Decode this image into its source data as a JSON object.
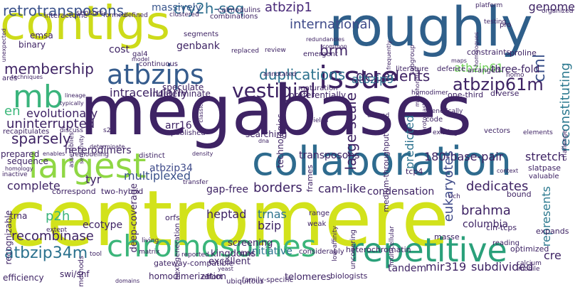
{
  "background": "#ffffff",
  "words": [
    {
      "text": "megabases",
      "color": "#3e2364"
    },
    {
      "text": "centromere",
      "color": "#d2e21b"
    },
    {
      "text": "contigs",
      "color": "#cddb1a"
    },
    {
      "text": "roughly",
      "color": "#2f5f8a"
    },
    {
      "text": "collaboration",
      "color": "#2e6b8e"
    },
    {
      "text": "chromosomes",
      "color": "#3bb57a"
    },
    {
      "text": "repetitive",
      "color": "#2aa07a"
    },
    {
      "text": "largest",
      "color": "#8fd744"
    },
    {
      "text": "atbzips",
      "color": "#365c8d"
    },
    {
      "text": "issue",
      "color": "#3e2364"
    },
    {
      "text": "mb",
      "color": "#3ab47c"
    },
    {
      "text": "retrotransposons",
      "color": "#3b528b"
    },
    {
      "text": "cry2h-seq",
      "color": "#2d6e8e"
    },
    {
      "text": "international",
      "color": "#3e4a89"
    },
    {
      "text": "atbzip1",
      "color": "#482878"
    },
    {
      "text": "genome",
      "color": "#3e2364"
    },
    {
      "text": "massively",
      "color": "#39568c"
    },
    {
      "text": "decedents",
      "color": "#3e2364"
    },
    {
      "text": "membership",
      "color": "#3e2364"
    },
    {
      "text": "duplications",
      "color": "#2c728e"
    },
    {
      "text": "vestigial",
      "color": "#3e2364"
    },
    {
      "text": "brm",
      "color": "#3e2364"
    },
    {
      "text": "cml",
      "color": "#3b528b"
    },
    {
      "text": "atbzip61m",
      "color": "#3e2364"
    },
    {
      "text": "atbzip9",
      "color": "#2c728e"
    },
    {
      "text": "atbzip61",
      "color": "#6ece58"
    },
    {
      "text": "intracellularly",
      "color": "#3e2364"
    },
    {
      "text": "three-fold",
      "color": "#3e2364"
    },
    {
      "text": "reconstituting",
      "color": "#2a788e"
    },
    {
      "text": "evolutionary",
      "color": "#3e2364"
    },
    {
      "text": "en",
      "color": "#3bb77a"
    },
    {
      "text": "uninterrupted",
      "color": "#3e2364"
    },
    {
      "text": "sparsely",
      "color": "#3e2364"
    },
    {
      "text": "large-scale",
      "color": "#3e2364"
    },
    {
      "text": "predicted",
      "color": "#2c728e"
    },
    {
      "text": "heterodimers",
      "color": "#3e2364"
    },
    {
      "text": "arr16",
      "color": "#3e2364"
    },
    {
      "text": "transposons",
      "color": "#3e2364"
    },
    {
      "text": "180-base-pair",
      "color": "#3e2364"
    },
    {
      "text": "stretch",
      "color": "#3e2364"
    },
    {
      "text": "multiplexed",
      "color": "#3b528b"
    },
    {
      "text": "tyr",
      "color": "#3e2364"
    },
    {
      "text": "complete",
      "color": "#3e2364"
    },
    {
      "text": "gap-free",
      "color": "#3e2364"
    },
    {
      "text": "borders",
      "color": "#3e2364"
    },
    {
      "text": "cam-like",
      "color": "#3e2364"
    },
    {
      "text": "condensation",
      "color": "#3e2364"
    },
    {
      "text": "dedicates",
      "color": "#3e2364"
    },
    {
      "text": "atbzip34",
      "color": "#3e4a89"
    },
    {
      "text": "p2h",
      "color": "#3ab47c"
    },
    {
      "text": "heptad",
      "color": "#3e2364"
    },
    {
      "text": "trnas",
      "color": "#2c728e"
    },
    {
      "text": "bzip",
      "color": "#3e2364"
    },
    {
      "text": "eukaryotes",
      "color": "#3e4a89"
    },
    {
      "text": "brahma",
      "color": "#3e2364"
    },
    {
      "text": "columbia",
      "color": "#3e2364"
    },
    {
      "text": "recombinase",
      "color": "#3e2364"
    },
    {
      "text": "atbzip34m",
      "color": "#2c728e"
    },
    {
      "text": "initiative",
      "color": "#2c728e"
    },
    {
      "text": "tandem",
      "color": "#3e2364"
    },
    {
      "text": "mir319",
      "color": "#3e2364"
    },
    {
      "text": "subdivided",
      "color": "#3e2364"
    },
    {
      "text": "cre",
      "color": "#3e2364"
    },
    {
      "text": "represents",
      "color": "#2a788e"
    },
    {
      "text": "deep-coverage",
      "color": "#3e2364"
    },
    {
      "text": "homodimerization",
      "color": "#3e2364"
    },
    {
      "text": "gateway-compatible",
      "color": "#3e2364"
    },
    {
      "text": "heterochromatin",
      "color": "#3e2364"
    },
    {
      "text": "biologists",
      "color": "#3e2364"
    },
    {
      "text": "telomeres",
      "color": "#3e2364"
    },
    {
      "text": "ecotype",
      "color": "#3e2364"
    },
    {
      "text": "screening",
      "color": "#3e2364"
    },
    {
      "text": "kingdoms",
      "color": "#3e2364"
    },
    {
      "text": "excellent",
      "color": "#3e2364"
    },
    {
      "text": "genbank",
      "color": "#3e2364"
    },
    {
      "text": "cost",
      "color": "#3e2364"
    },
    {
      "text": "emsa",
      "color": "#3e2364"
    },
    {
      "text": "binary",
      "color": "#3e2364"
    },
    {
      "text": "sensors",
      "color": "#3e2364"
    },
    {
      "text": "interactome",
      "color": "#3e2364"
    },
    {
      "text": "formed",
      "color": "#3e2364"
    },
    {
      "text": "defined",
      "color": "#3e2364"
    },
    {
      "text": "clustered",
      "color": "#3e2364"
    },
    {
      "text": "combinations",
      "color": "#3e2364"
    },
    {
      "text": "calmodulins",
      "color": "#3e2364"
    },
    {
      "text": "platform",
      "color": "#3e2364"
    },
    {
      "text": "organized",
      "color": "#3e2364"
    },
    {
      "text": "pro",
      "color": "#3e2364"
    },
    {
      "text": "testing",
      "color": "#3e2364"
    },
    {
      "text": "constraints",
      "color": "#3e2364"
    },
    {
      "text": "proline",
      "color": "#3e2364"
    },
    {
      "text": "homo",
      "color": "#3e2364"
    },
    {
      "text": "arranged",
      "color": "#3e2364"
    },
    {
      "text": "literature",
      "color": "#3e2364"
    },
    {
      "text": "defence",
      "color": "#3e2364"
    },
    {
      "text": "emergent",
      "color": "#3e2364"
    },
    {
      "text": "common",
      "color": "#3e2364"
    },
    {
      "text": "maps",
      "color": "#3e2364"
    },
    {
      "text": "homologues",
      "color": "#3e2364"
    },
    {
      "text": "subgroup",
      "color": "#3e2364"
    },
    {
      "text": "frequently",
      "color": "#3e2364"
    },
    {
      "text": "redundancies",
      "color": "#3e2364"
    },
    {
      "text": "review",
      "color": "#3e2364"
    },
    {
      "text": "replaced",
      "color": "#3e2364"
    },
    {
      "text": "segments",
      "color": "#3e2364"
    },
    {
      "text": "gal4",
      "color": "#3e2364"
    },
    {
      "text": "model",
      "color": "#3e2364"
    },
    {
      "text": "continuous",
      "color": "#3e2364"
    },
    {
      "text": "speculate",
      "color": "#3e2364"
    },
    {
      "text": "indeterminate",
      "color": "#3e2364"
    },
    {
      "text": "annotated",
      "color": "#3e2364"
    },
    {
      "text": "maturation",
      "color": "#3e2364"
    },
    {
      "text": "preferentially",
      "color": "#3e2364"
    },
    {
      "text": "homodimer",
      "color": "#3e2364"
    },
    {
      "text": "one-third",
      "color": "#3e2364"
    },
    {
      "text": "diverse",
      "color": "#3e2364"
    },
    {
      "text": "techniques",
      "color": "#3e2364"
    },
    {
      "text": "lineage",
      "color": "#3e2364"
    },
    {
      "text": "typically",
      "color": "#3e2364"
    },
    {
      "text": "recapitulates",
      "color": "#3e2364"
    },
    {
      "text": "discuss",
      "color": "#3e2364"
    },
    {
      "text": "s2",
      "color": "#3e2364"
    },
    {
      "text": "assemblies",
      "color": "#3e2364"
    },
    {
      "text": "remodeling",
      "color": "#3e2364"
    },
    {
      "text": "sensitivity",
      "color": "#3e2364"
    },
    {
      "text": "published",
      "color": "#3e2364"
    },
    {
      "text": "classical",
      "color": "#3e2364"
    },
    {
      "text": "searching",
      "color": "#3e2364"
    },
    {
      "text": "dna",
      "color": "#3e2364"
    },
    {
      "text": "technologies",
      "color": "#3e2364"
    },
    {
      "text": "yields",
      "color": "#3e2364"
    },
    {
      "text": "protoplast",
      "color": "#3e2364"
    },
    {
      "text": "extend",
      "color": "#3e2364"
    },
    {
      "text": "genetically",
      "color": "#3e2364"
    },
    {
      "text": "code",
      "color": "#3e2364"
    },
    {
      "text": "existing",
      "color": "#3e2364"
    },
    {
      "text": "vectors",
      "color": "#3e2364"
    },
    {
      "text": "elements",
      "color": "#3e2364"
    },
    {
      "text": "challenge",
      "color": "#3e2364"
    },
    {
      "text": "medium-throughput",
      "color": "#3e2364"
    },
    {
      "text": "prepared",
      "color": "#3e2364"
    },
    {
      "text": "enables",
      "color": "#3e2364"
    },
    {
      "text": "determinate",
      "color": "#3e2364"
    },
    {
      "text": "distinct",
      "color": "#3e2364"
    },
    {
      "text": "density",
      "color": "#3e2364"
    },
    {
      "text": "frames",
      "color": "#3e2364"
    },
    {
      "text": "tcp4",
      "color": "#3e2364"
    },
    {
      "text": "context",
      "color": "#3e2364"
    },
    {
      "text": "slatpase",
      "color": "#3e2364"
    },
    {
      "text": "valuable",
      "color": "#3e2364"
    },
    {
      "text": "sequence",
      "color": "#3e2364"
    },
    {
      "text": "homology",
      "color": "#3e2364"
    },
    {
      "text": "inactive",
      "color": "#3e2364"
    },
    {
      "text": "correspond",
      "color": "#3e2364"
    },
    {
      "text": "two-hybrid",
      "color": "#3e2364"
    },
    {
      "text": "transfer",
      "color": "#3e2364"
    },
    {
      "text": "rich",
      "color": "#3e2364"
    },
    {
      "text": "bound",
      "color": "#3e2364"
    },
    {
      "text": "recognizable",
      "color": "#3e2364"
    },
    {
      "text": "trna",
      "color": "#3e2364"
    },
    {
      "text": "extent",
      "color": "#3e2364"
    },
    {
      "text": "orfs",
      "color": "#3e2364"
    },
    {
      "text": "living",
      "color": "#3e2364"
    },
    {
      "text": "next-generation",
      "color": "#3e2364"
    },
    {
      "text": "range",
      "color": "#3e2364"
    },
    {
      "text": "weak",
      "color": "#3e2364"
    },
    {
      "text": "uncovering",
      "color": "#3e2364"
    },
    {
      "text": "masse",
      "color": "#3e2364"
    },
    {
      "text": "cin-tcps",
      "color": "#3e2364"
    },
    {
      "text": "expands",
      "color": "#3e2364"
    },
    {
      "text": "reading",
      "color": "#3e2364"
    },
    {
      "text": "low-affinity",
      "color": "#3e2364"
    },
    {
      "text": "multicellular",
      "color": "#3e2364"
    },
    {
      "text": "optimized",
      "color": "#3e2364"
    },
    {
      "text": "tool",
      "color": "#3e2364"
    },
    {
      "text": "yeast",
      "color": "#3e2364"
    },
    {
      "text": "reported",
      "color": "#3e2364"
    },
    {
      "text": "fuse",
      "color": "#3e2364"
    },
    {
      "text": "considerably",
      "color": "#3e2364"
    },
    {
      "text": "calcium",
      "color": "#3e2364"
    },
    {
      "text": "mobile",
      "color": "#3e2364"
    },
    {
      "text": "methods",
      "color": "#3e2364"
    },
    {
      "text": "efficiency",
      "color": "#3e2364"
    },
    {
      "text": "swi/snf",
      "color": "#3e2364"
    },
    {
      "text": "domains",
      "color": "#3e2364"
    },
    {
      "text": "effort",
      "color": "#3e2364"
    },
    {
      "text": "ubiquitous",
      "color": "#3e2364"
    },
    {
      "text": "family-specific",
      "color": "#3e2364"
    },
    {
      "text": "matrix",
      "color": "#3e2364"
    },
    {
      "text": "ares",
      "color": "#3e2364"
    },
    {
      "text": "unexpected",
      "color": "#3e2364"
    },
    {
      "text": "mitochondrial",
      "color": "#3e2364"
    }
  ]
}
